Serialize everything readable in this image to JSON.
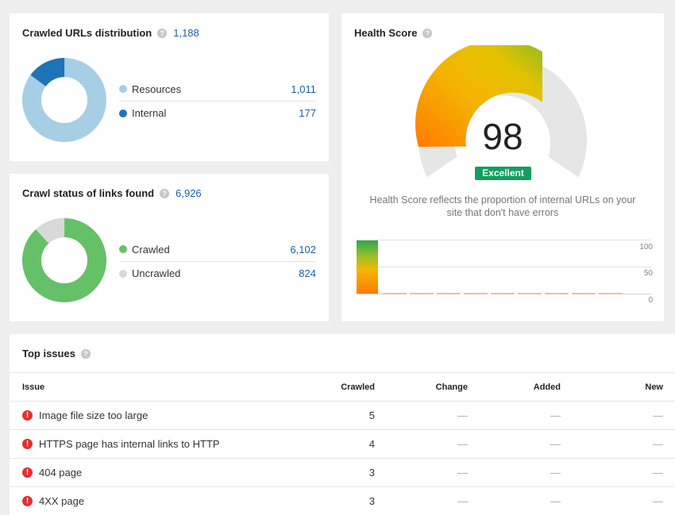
{
  "crawled_urls": {
    "title": "Crawled URLs distribution",
    "count": "1,188",
    "legend": [
      {
        "label": "Resources",
        "value": "1,011",
        "color": "#a6cfe5"
      },
      {
        "label": "Internal",
        "value": "177",
        "color": "#1f73b8"
      }
    ]
  },
  "crawl_status": {
    "title": "Crawl status of links found",
    "count": "6,926",
    "legend": [
      {
        "label": "Crawled",
        "value": "6,102",
        "color": "#64c167"
      },
      {
        "label": "Uncrawled",
        "value": "824",
        "color": "#d9d9d9"
      }
    ]
  },
  "health_score": {
    "title": "Health Score",
    "score": "98",
    "badge": "Excellent",
    "description_line1": "Health Score reflects the proportion of internal URLs on your",
    "description_line2": "site that don't have errors",
    "axis_ticks": [
      "100",
      "50",
      "0"
    ]
  },
  "top_issues": {
    "title": "Top issues",
    "columns": [
      "Issue",
      "Crawled",
      "Change",
      "Added",
      "New"
    ],
    "rows": [
      {
        "issue": "Image file size too large",
        "crawled": "5",
        "change": "—",
        "added": "—",
        "new": "—"
      },
      {
        "issue": "HTTPS page has internal links to HTTP",
        "crawled": "4",
        "change": "—",
        "added": "—",
        "new": "—"
      },
      {
        "issue": "404 page",
        "crawled": "3",
        "change": "—",
        "added": "—",
        "new": "—"
      },
      {
        "issue": "4XX page",
        "crawled": "3",
        "change": "—",
        "added": "—",
        "new": "—"
      }
    ]
  },
  "colors": {
    "accent": "#1d5ea8",
    "error": "#e5302f",
    "excellent": "#0f9f5e"
  }
}
